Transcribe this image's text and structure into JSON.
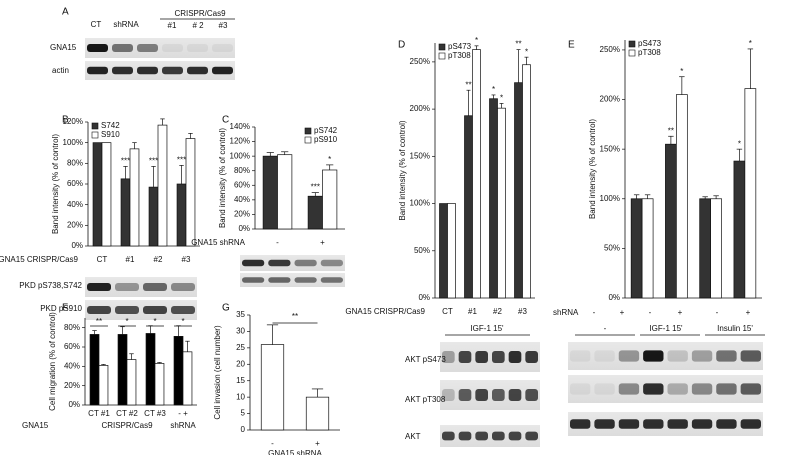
{
  "chart_data": [
    {
      "type": "bar",
      "panel": "B",
      "ylabel": "Band intensity (% of control)",
      "xlabel": "GNA15  CRISPR/Cas9",
      "categories": [
        "CT",
        "#1",
        "#2",
        "#3"
      ],
      "series": [
        {
          "name": "S742",
          "color": "#333333",
          "values": [
            100,
            65,
            57,
            60
          ],
          "errors": [
            null,
            12,
            20,
            18
          ],
          "stars": [
            null,
            "***",
            "***",
            "***"
          ]
        },
        {
          "name": "S910",
          "color": "#ffffff",
          "values": [
            100,
            94,
            117,
            104
          ],
          "errors": [
            null,
            6,
            6,
            5
          ],
          "stars": [
            null,
            null,
            null,
            null
          ]
        }
      ],
      "ylim": [
        0,
        120
      ],
      "yticks": [
        {
          "value": 0,
          "label": "0%"
        },
        {
          "value": 20,
          "label": "20%"
        },
        {
          "value": 40,
          "label": "40%"
        },
        {
          "value": 60,
          "label": "60%"
        },
        {
          "value": 80,
          "label": "80%"
        },
        {
          "value": 100,
          "label": "100%"
        },
        {
          "value": 120,
          "label": "120%"
        }
      ],
      "legend": "upper left"
    },
    {
      "type": "bar",
      "panel": "C",
      "ylabel": "Band intensity (% of control)",
      "xlabel": "GNA15 shRNA",
      "categories": [
        "-",
        "+"
      ],
      "series": [
        {
          "name": "pS742",
          "color": "#333333",
          "values": [
            100,
            45
          ],
          "errors": [
            5,
            5
          ],
          "stars": [
            null,
            "***"
          ]
        },
        {
          "name": "pS910",
          "color": "#ffffff",
          "values": [
            102,
            81
          ],
          "errors": [
            4,
            7
          ],
          "stars": [
            null,
            "*"
          ]
        }
      ],
      "ylim": [
        0,
        140
      ],
      "yticks": [
        {
          "value": 0,
          "label": "0%"
        },
        {
          "value": 20,
          "label": "20%"
        },
        {
          "value": 40,
          "label": "40%"
        },
        {
          "value": 60,
          "label": "60%"
        },
        {
          "value": 80,
          "label": "80%"
        },
        {
          "value": 100,
          "label": "100%"
        },
        {
          "value": 120,
          "label": "120%"
        },
        {
          "value": 140,
          "label": "140%"
        }
      ],
      "legend": "upper right"
    },
    {
      "type": "bar",
      "panel": "D",
      "ylabel": "Band intensity (% of control)",
      "xlabel": "GNA15  CRISPR/Cas9",
      "categories": [
        "CT",
        "#1",
        "#2",
        "#3"
      ],
      "series": [
        {
          "name": "pS473",
          "color": "#333333",
          "values": [
            100,
            193,
            211,
            228
          ],
          "errors": [
            null,
            27,
            4,
            35
          ],
          "stars": [
            null,
            "**",
            "*",
            "**"
          ]
        },
        {
          "name": "pT308",
          "color": "#ffffff",
          "values": [
            100,
            263,
            201,
            247
          ],
          "errors": [
            null,
            4,
            5,
            8
          ],
          "stars": [
            null,
            "*",
            "*",
            "*"
          ]
        }
      ],
      "ylim": [
        0,
        270
      ],
      "yticks": [
        {
          "value": 0,
          "label": "0%"
        },
        {
          "value": 50,
          "label": "50%"
        },
        {
          "value": 100,
          "label": "100%"
        },
        {
          "value": 150,
          "label": "150%"
        },
        {
          "value": 200,
          "label": "200%"
        },
        {
          "value": 250,
          "label": "250%"
        }
      ],
      "legend": "upper left"
    },
    {
      "type": "bar",
      "panel": "E",
      "ylabel": "Band intensity (% of control)",
      "categories": [
        null,
        null,
        null,
        null
      ],
      "series": [
        {
          "name": "pS473",
          "color": "#333333",
          "values": [
            100,
            155,
            100,
            138
          ],
          "errors": [
            4,
            8,
            2,
            12
          ],
          "stars": [
            null,
            "**",
            null,
            "*"
          ]
        },
        {
          "name": "pT308",
          "color": "#ffffff",
          "values": [
            100,
            205,
            100,
            211
          ],
          "errors": [
            4,
            18,
            3,
            40
          ],
          "stars": [
            null,
            "*",
            null,
            "*"
          ]
        }
      ],
      "ylim": [
        0,
        260
      ],
      "yticks": [
        {
          "value": 0,
          "label": "0%"
        },
        {
          "value": 50,
          "label": "50%"
        },
        {
          "value": 100,
          "label": "100%"
        },
        {
          "value": 150,
          "label": "150%"
        },
        {
          "value": 200,
          "label": "200%"
        },
        {
          "value": 250,
          "label": "250%"
        }
      ],
      "legend": "upper left"
    },
    {
      "type": "bar",
      "panel": "F",
      "ylabel": "Cell migration (% of control)",
      "xlabel": "GNA15",
      "group_labels": [
        "CRISPR/Cas9",
        "shRNA"
      ],
      "categories": [
        "CT #1",
        "CT #2",
        "CT #3",
        "-  +"
      ],
      "series": [
        {
          "color": "#000000",
          "values": [
            73,
            73,
            74,
            71
          ],
          "errors": [
            4,
            8,
            8,
            11
          ]
        },
        {
          "color": "#ffffff",
          "values": [
            41,
            47,
            43,
            55
          ],
          "errors": [
            1,
            6,
            1,
            11
          ]
        }
      ],
      "annotations": [
        "**",
        "*",
        "*",
        "*"
      ],
      "ylim": [
        0,
        90
      ],
      "yticks": [
        {
          "value": 0,
          "label": "0%"
        },
        {
          "value": 20,
          "label": "20%"
        },
        {
          "value": 40,
          "label": "40%"
        },
        {
          "value": 60,
          "label": "60%"
        },
        {
          "value": 80,
          "label": "80%"
        }
      ]
    },
    {
      "type": "bar",
      "panel": "G",
      "ylabel": "Cell invasion (cell number)",
      "xlabel": "GNA15 shRNA",
      "categories": [
        "-",
        "+"
      ],
      "series": [
        {
          "color": "#ffffff",
          "values": [
            26,
            10
          ],
          "errors": [
            6,
            2.5
          ]
        }
      ],
      "annotation": "**",
      "ylim": [
        0,
        35
      ],
      "yticks": [
        0,
        5,
        10,
        15,
        20,
        25,
        30,
        35
      ]
    }
  ],
  "blots": {
    "A": {
      "panel": "A",
      "lanes": [
        "CT",
        "shRNA",
        "#1",
        "# 2",
        "#3"
      ],
      "group": "CRISPR/Cas9",
      "rows": [
        "GNA15",
        "actin"
      ]
    },
    "B": {
      "rows": [
        "PKD pS738,S742",
        "PKD pS910"
      ]
    },
    "D": {
      "treatment": "IGF-1 15'",
      "rows": [
        "AKT pS473",
        "AKT pT308",
        "AKT"
      ]
    },
    "E": {
      "row_label": "shRNA",
      "signs": [
        "-",
        "+",
        "-",
        "+",
        "-",
        "+"
      ],
      "groups": [
        "-",
        "IGF-1 15'",
        "Insulin 15'"
      ]
    }
  }
}
